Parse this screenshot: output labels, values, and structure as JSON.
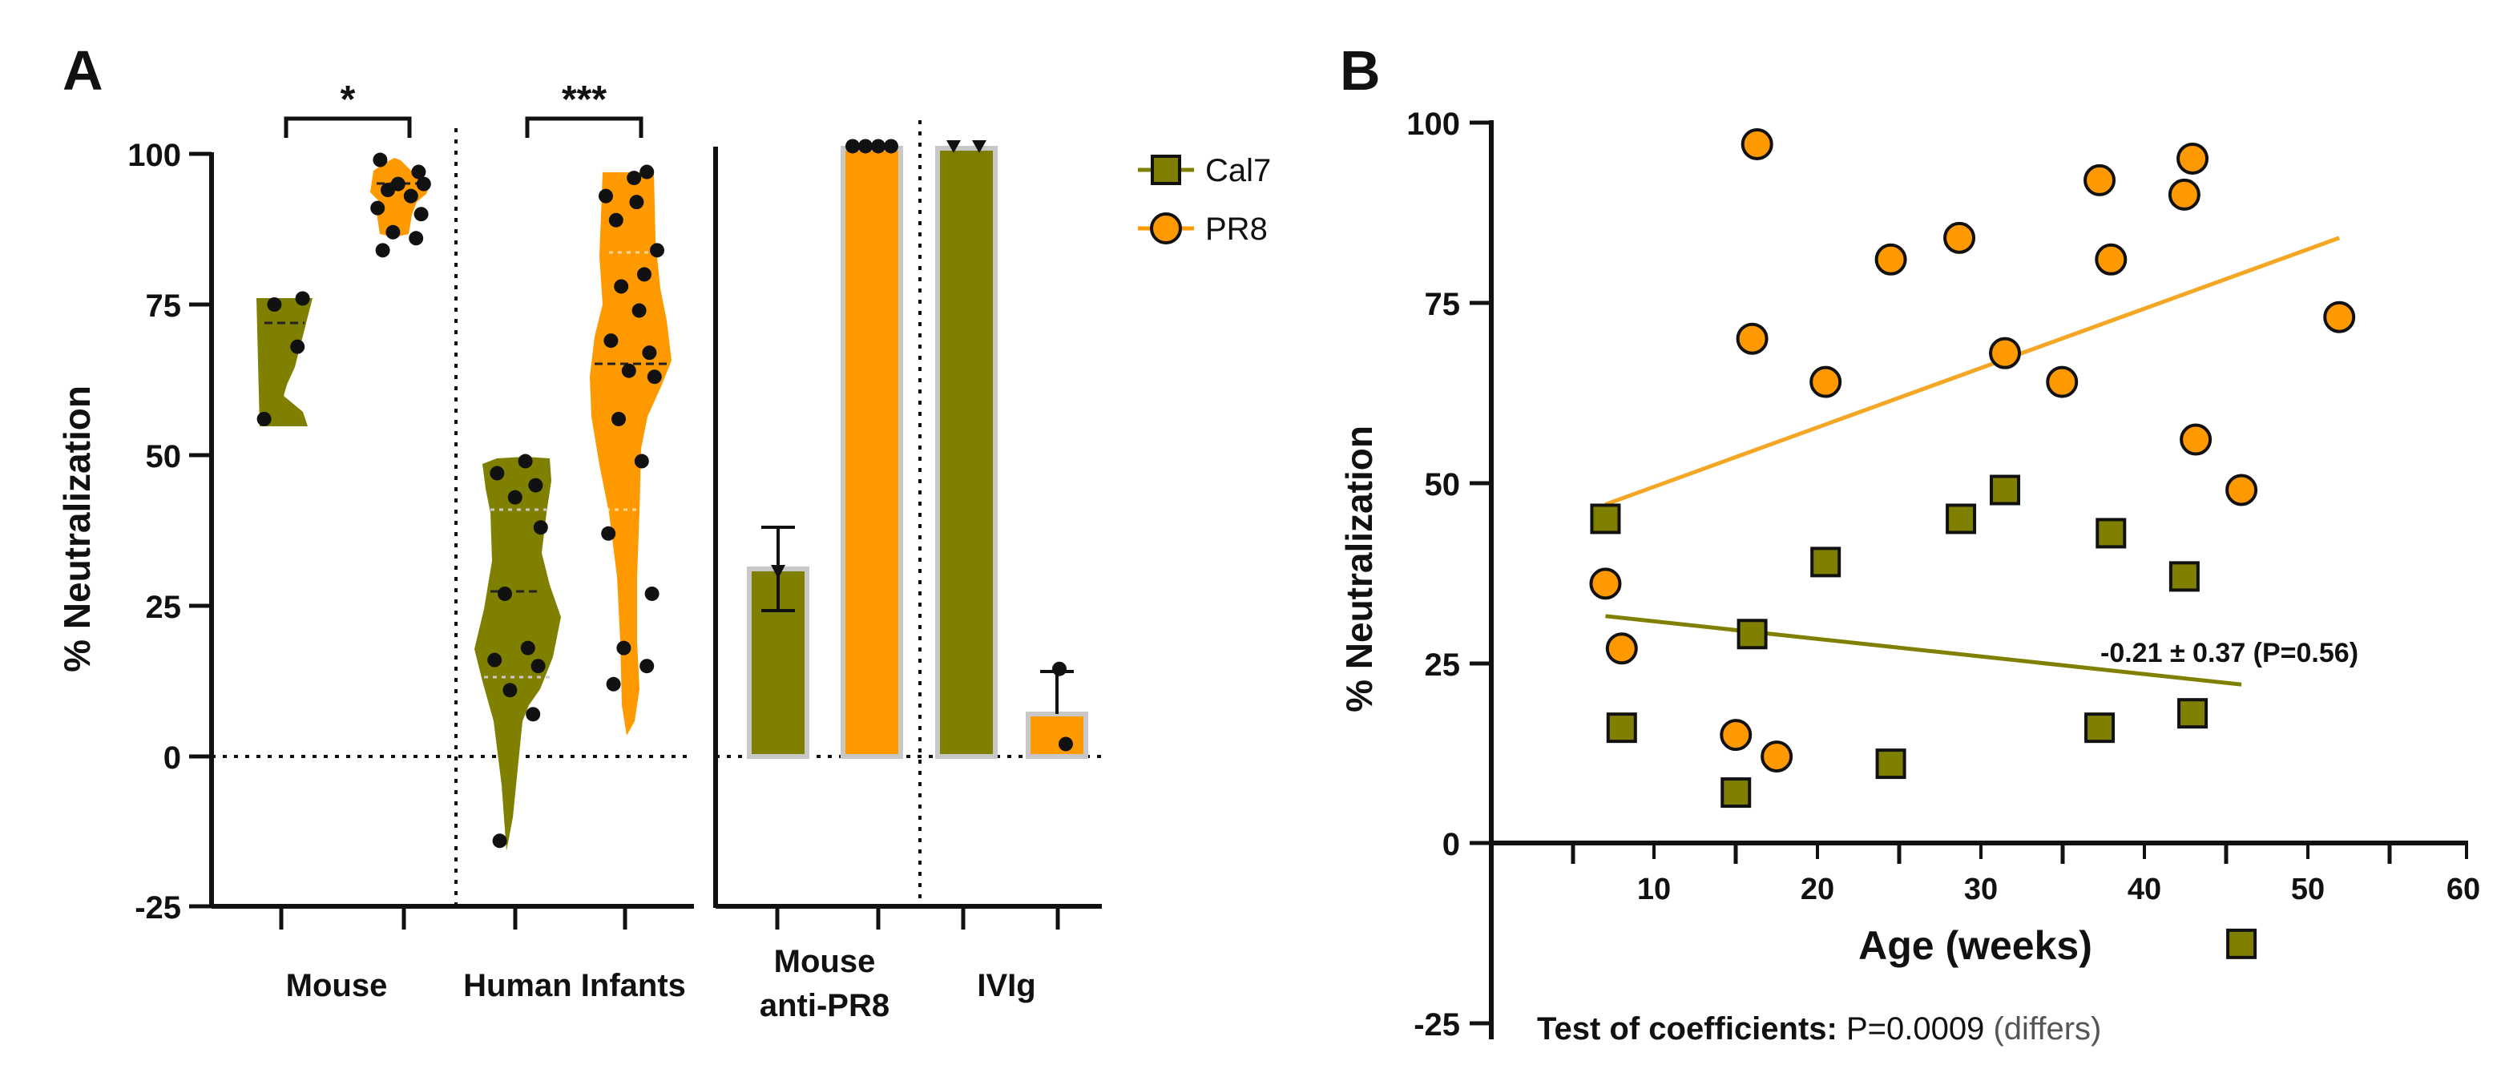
{
  "colors": {
    "cal7": "#808000",
    "pr8": "#FF9900",
    "pr8_line": "#F5A623",
    "bar_outline": "#C8C8C8",
    "dot": "#111111",
    "text": "#111111"
  },
  "panel_a": {
    "label": "A",
    "ylabel": "% Neutralization",
    "yticks": [
      "100",
      "75",
      "50",
      "25",
      "0",
      "-25"
    ],
    "group_labels": {
      "mouse": "Mouse",
      "human": "Human Infants",
      "anti_line1": "Mouse",
      "anti_line2": "anti-PR8",
      "ivig": "IVIg"
    },
    "sig": {
      "mouse": "*",
      "human": "***"
    },
    "legend": {
      "cal7": "Cal7",
      "pr8": "PR8"
    }
  },
  "panel_b": {
    "label": "B",
    "ylabel": "% Neutralization",
    "xlabel": "Age (weeks)",
    "yticks": [
      "100",
      "75",
      "50",
      "25",
      "0",
      "-25"
    ],
    "xticks": [
      "10",
      "20",
      "30",
      "40",
      "50",
      "60"
    ],
    "annotation": "-0.21 ± 0.37 (P=0.56)",
    "test_label": "Test of coefficients:",
    "test_value": " P=0.0009",
    "test_note": " (differs)"
  },
  "chart_data": [
    {
      "type": "violin+bar",
      "title": "",
      "ylabel": "% Neutralization",
      "ylim": [
        -25,
        100
      ],
      "groups": [
        {
          "name": "Mouse",
          "series": [
            {
              "name": "Cal7",
              "kind": "violin",
              "median": 72,
              "q1": 60,
              "q3": 76,
              "min": 56,
              "max": 76,
              "points": [
                56,
                68,
                75,
                76
              ]
            },
            {
              "name": "PR8",
              "kind": "violin",
              "median": 94,
              "q1": 90,
              "q3": 95,
              "min": 84,
              "max": 99,
              "points": [
                84,
                86,
                87,
                90,
                91,
                93,
                94,
                95,
                95,
                97,
                99
              ]
            }
          ],
          "significance": "*"
        },
        {
          "name": "Human Infants",
          "series": [
            {
              "name": "Cal7",
              "kind": "violin",
              "median": 27,
              "q1": 13,
              "q3": 41,
              "min": -14,
              "max": 49,
              "points": [
                -14,
                7,
                11,
                15,
                16,
                18,
                27,
                38,
                43,
                45,
                47,
                49
              ]
            },
            {
              "name": "PR8",
              "kind": "violin",
              "median": 68,
              "q1": 41,
              "q3": 84,
              "min": 12,
              "max": 97,
              "points": [
                12,
                15,
                18,
                27,
                37,
                49,
                56,
                63,
                64,
                67,
                69,
                74,
                78,
                80,
                84,
                89,
                92,
                93,
                96,
                97
              ]
            }
          ],
          "significance": "***"
        },
        {
          "name": "Mouse anti-PR8",
          "series": [
            {
              "name": "Cal7",
              "kind": "bar",
              "value": 31,
              "error_low": 24,
              "error_high": 38,
              "points": [
                38,
                31,
                24
              ]
            },
            {
              "name": "PR8",
              "kind": "bar",
              "value": 101,
              "points": [
                101,
                101,
                101,
                101
              ]
            }
          ]
        },
        {
          "name": "IVIg",
          "series": [
            {
              "name": "Cal7",
              "kind": "bar",
              "value": 101,
              "points": [
                101,
                101
              ]
            },
            {
              "name": "PR8",
              "kind": "bar",
              "value": 7,
              "error_low": 0,
              "error_high": 14,
              "points": [
                14,
                1
              ]
            }
          ]
        }
      ],
      "legend": [
        "Cal7",
        "PR8"
      ]
    },
    {
      "type": "scatter",
      "title": "",
      "xlabel": "Age (weeks)",
      "ylabel": "% Neutralization",
      "xlim": [
        0,
        60
      ],
      "ylim": [
        -25,
        100
      ],
      "series": [
        {
          "name": "Cal7",
          "marker": "square",
          "x": [
            7,
            8,
            15,
            16,
            20.5,
            24.5,
            28.8,
            31.5,
            37.3,
            38,
            42.5,
            43,
            46
          ],
          "y": [
            45,
            16,
            7,
            29,
            39,
            11,
            45,
            49,
            16,
            43,
            37,
            18,
            -14
          ],
          "fit": {
            "x": [
              7,
              46
            ],
            "y": [
              31.5,
              22
            ]
          }
        },
        {
          "name": "PR8",
          "marker": "circle",
          "x": [
            7,
            8,
            15,
            16,
            16.3,
            17.5,
            20.5,
            24.5,
            28.7,
            31.5,
            35,
            37.3,
            38,
            42.5,
            43,
            43.2,
            46,
            52
          ],
          "y": [
            36,
            27,
            15,
            70,
            97,
            12,
            64,
            81,
            84,
            68,
            64,
            92,
            81,
            90,
            95,
            56,
            49,
            73
          ],
          "fit": {
            "x": [
              7,
              52
            ],
            "y": [
              47,
              84
            ]
          }
        }
      ],
      "annotation": "-0.21 ± 0.37 (P=0.56)"
    }
  ]
}
